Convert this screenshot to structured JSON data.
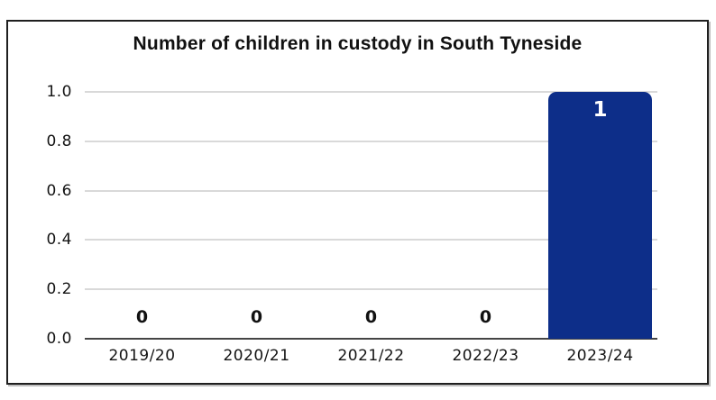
{
  "chart_data": {
    "type": "bar",
    "title": "Number of children in custody in South Tyneside",
    "categories": [
      "2019/20",
      "2020/21",
      "2021/22",
      "2022/23",
      "2023/24"
    ],
    "values": [
      0,
      0,
      0,
      0,
      1
    ],
    "bar_value_labels": [
      "0",
      "0",
      "0",
      "0",
      "1"
    ],
    "xlabel": "",
    "ylabel": "",
    "ylim": [
      0,
      1
    ],
    "ytick_values": [
      0,
      0.2,
      0.4,
      0.6,
      0.8,
      1.0
    ],
    "ytick_labels": [
      "0.0",
      "0.2",
      "0.4",
      "0.6",
      "0.8",
      "1.0"
    ],
    "grid": "horizontal-only",
    "legend": "none",
    "colors": {
      "bar": "#0d2e89",
      "gridline": "#d9d9d9",
      "x_axis_line": "#454545",
      "tick_text": "#141414",
      "title_text": "#111111",
      "label_on_bar": "#ffffff",
      "label_zero": "#111111",
      "frame_border": "#1f1f1f",
      "background": "#ffffff"
    }
  }
}
